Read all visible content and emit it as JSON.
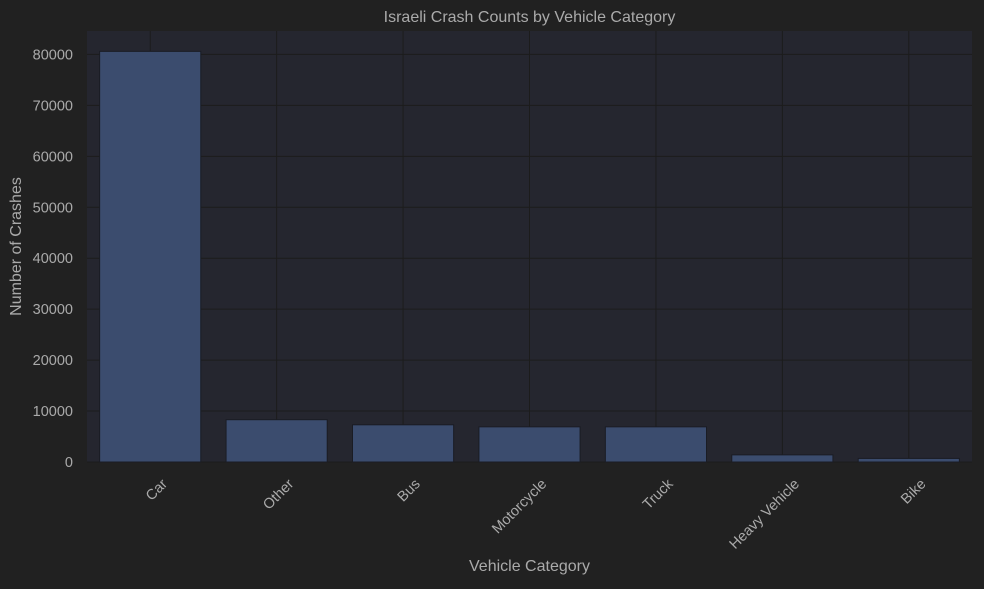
{
  "chart_data": {
    "type": "bar",
    "title": "Israeli Crash Counts by Vehicle Category",
    "xlabel": "Vehicle Category",
    "ylabel": "Number of Crashes",
    "categories": [
      "Car",
      "Other",
      "Bus",
      "Motorcycle",
      "Truck",
      "Heavy Vehicle",
      "Bike"
    ],
    "values": [
      80600,
      8300,
      7300,
      6900,
      6900,
      1400,
      700
    ],
    "ylim": [
      0,
      84600
    ],
    "yticks": [
      0,
      10000,
      20000,
      30000,
      40000,
      50000,
      60000,
      70000,
      80000
    ],
    "grid": true,
    "colors": {
      "page_background": "#212121",
      "plot_background": "#25262f",
      "bar_fill": "#3b4c6e",
      "bar_edge": "#1a1c24",
      "grid": "#1c1c1c",
      "text": "#aaaaaa"
    }
  }
}
